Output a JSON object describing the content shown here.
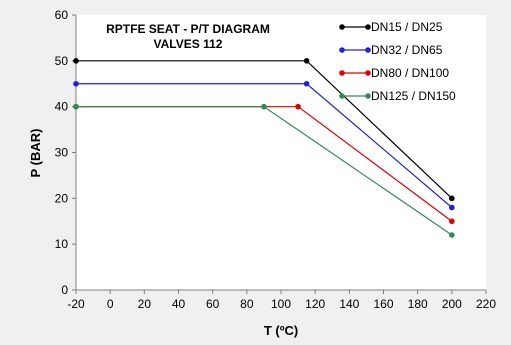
{
  "chart_data": {
    "type": "line",
    "title_lines": [
      "RPTFE SEAT - P/T DIAGRAM",
      "VALVES 112"
    ],
    "xlabel": "T (ºC)",
    "ylabel": "P (BAR)",
    "xlim": [
      -20,
      220
    ],
    "ylim": [
      0,
      60
    ],
    "x_ticks": [
      -20,
      0,
      20,
      40,
      60,
      80,
      100,
      120,
      140,
      160,
      180,
      200,
      220
    ],
    "y_ticks": [
      0,
      10,
      20,
      30,
      40,
      50,
      60
    ],
    "grid": false,
    "legend_position": "top-right",
    "series": [
      {
        "name": "DN15 / DN25",
        "color": "#000000",
        "points": [
          [
            -20,
            50
          ],
          [
            115,
            50
          ],
          [
            200,
            20
          ]
        ]
      },
      {
        "name": "DN32 / DN65",
        "color": "#2020e0",
        "points": [
          [
            -20,
            45
          ],
          [
            115,
            45
          ],
          [
            200,
            18
          ]
        ]
      },
      {
        "name": "DN80 / DN100",
        "color": "#e00000",
        "points": [
          [
            -20,
            40
          ],
          [
            110,
            40
          ],
          [
            200,
            15
          ]
        ]
      },
      {
        "name": "DN125 / DN150",
        "color": "#2e8b57",
        "points": [
          [
            -20,
            40
          ],
          [
            90,
            40
          ],
          [
            200,
            12
          ]
        ]
      }
    ]
  }
}
